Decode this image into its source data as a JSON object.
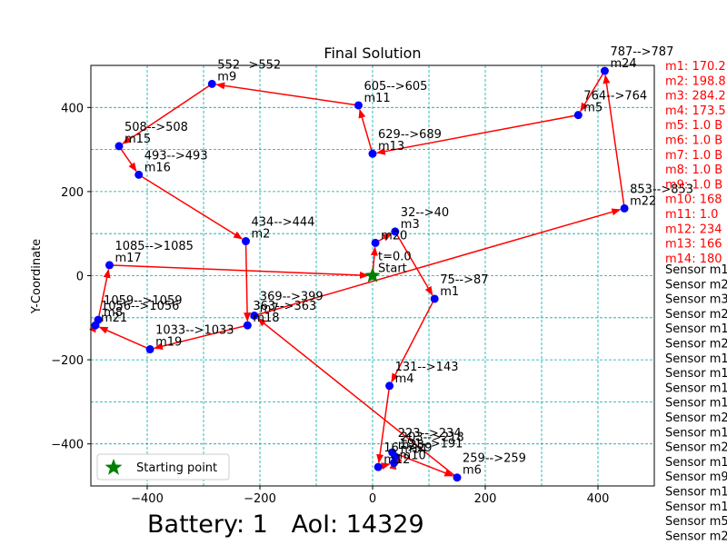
{
  "chart_data": {
    "type": "scatter",
    "title": "Final Solution",
    "xlabel": "",
    "ylabel": "Y-Coordinate",
    "xlim": [
      -500,
      500
    ],
    "ylim": [
      -500,
      500
    ],
    "xticks": [
      -400,
      -200,
      0,
      200,
      400
    ],
    "yticks": [
      -400,
      -200,
      0,
      200,
      400
    ],
    "grid": true,
    "start": {
      "x": 0,
      "y": 0,
      "label": "Start",
      "t_label": "t=0.0"
    },
    "legend": {
      "label": "Starting point",
      "position": "lower-left"
    },
    "nodes": [
      {
        "name": "m20",
        "x": 5,
        "y": 78,
        "time": ""
      },
      {
        "name": "m3",
        "x": 40,
        "y": 105,
        "time": "32-->40"
      },
      {
        "name": "m1",
        "x": 110,
        "y": -55,
        "time": "75-->87"
      },
      {
        "name": "m4",
        "x": 30,
        "y": -262,
        "time": "131-->143"
      },
      {
        "name": "m12",
        "x": 10,
        "y": -455,
        "time": "16-->29"
      },
      {
        "name": "m10",
        "x": 38,
        "y": -445,
        "time": "191-->191"
      },
      {
        "name": "m14",
        "x": 40,
        "y": -430,
        "time": "203-->218"
      },
      {
        "name": "m23",
        "x": 35,
        "y": -420,
        "time": "223-->234"
      },
      {
        "name": "m6",
        "x": 150,
        "y": -480,
        "time": "259-->259"
      },
      {
        "name": "m7",
        "x": -210,
        "y": -95,
        "time": "369-->399"
      },
      {
        "name": "m18",
        "x": -222,
        "y": -118,
        "time": "363-->363"
      },
      {
        "name": "m2",
        "x": -225,
        "y": 82,
        "time": "434-->444"
      },
      {
        "name": "m16",
        "x": -415,
        "y": 240,
        "time": "493-->493"
      },
      {
        "name": "m15",
        "x": -450,
        "y": 308,
        "time": "508-->508"
      },
      {
        "name": "m9",
        "x": -285,
        "y": 456,
        "time": "552-->552"
      },
      {
        "name": "m11",
        "x": -25,
        "y": 405,
        "time": "605-->605"
      },
      {
        "name": "m13",
        "x": 0,
        "y": 290,
        "time": "629-->689"
      },
      {
        "name": "m5",
        "x": 365,
        "y": 382,
        "time": "764-->764"
      },
      {
        "name": "m24",
        "x": 412,
        "y": 487,
        "time": "787-->787"
      },
      {
        "name": "m22",
        "x": 447,
        "y": 160,
        "time": "853-->853"
      },
      {
        "name": "m19",
        "x": -395,
        "y": -175,
        "time": "1033-->1033"
      },
      {
        "name": "m21",
        "x": -492,
        "y": -118,
        "time": "1056-->1056"
      },
      {
        "name": "m8",
        "x": -487,
        "y": -105,
        "time": "1059-->1059"
      },
      {
        "name": "m17",
        "x": -467,
        "y": 25,
        "time": "1085-->1085"
      }
    ],
    "path": [
      [
        0,
        0
      ],
      [
        5,
        78
      ],
      [
        40,
        105
      ],
      [
        110,
        -55
      ],
      [
        30,
        -262
      ],
      [
        10,
        -455
      ],
      [
        38,
        -445
      ],
      [
        40,
        -430
      ],
      [
        35,
        -420
      ],
      [
        150,
        -480
      ],
      [
        -210,
        -95
      ],
      [
        447,
        160
      ],
      [
        412,
        487
      ],
      [
        365,
        382
      ],
      [
        0,
        290
      ],
      [
        -25,
        405
      ],
      [
        -285,
        456
      ],
      [
        -450,
        308
      ],
      [
        -415,
        240
      ],
      [
        -225,
        82
      ],
      [
        -222,
        -118
      ],
      [
        -395,
        -175
      ],
      [
        -492,
        -118
      ],
      [
        -487,
        -105
      ],
      [
        -467,
        25
      ],
      [
        0,
        0
      ]
    ],
    "side_red": [
      "m1: 170.2",
      "m2: 198.8",
      "m3: 284.2",
      "m4: 173.5",
      "m5: 1.0 B",
      "m6: 1.0 B",
      "m7: 1.0 B",
      "m8: 1.0 B",
      "m9: 1.0 B",
      "m10: 168",
      "m11: 1.0",
      "m12: 234",
      "m13: 166",
      "m14: 180"
    ],
    "side_black": [
      "Sensor m1",
      "Sensor m2",
      "Sensor m3",
      "Sensor m2",
      "Sensor m1",
      "Sensor m2",
      "Sensor m1",
      "Sensor m1",
      "Sensor m1",
      "Sensor m1",
      "Sensor m2",
      "Sensor m1",
      "Sensor m2",
      "Sensor m1",
      "Sensor m9",
      "Sensor m1",
      "Sensor m1",
      "Sensor m5",
      "Sensor m2"
    ],
    "bottom_text": "Battery: 1   AoI: 14329"
  }
}
